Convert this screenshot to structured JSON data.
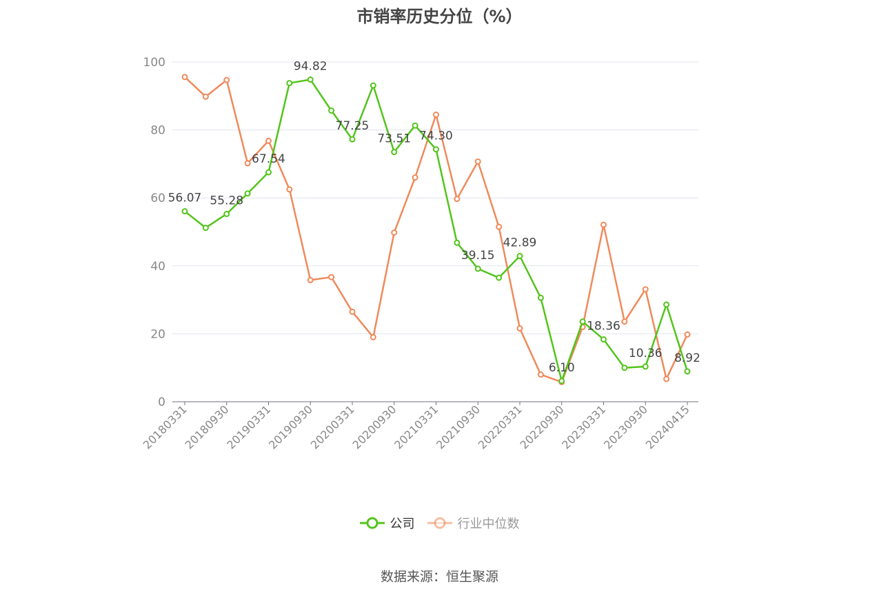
{
  "chart_data": {
    "type": "line",
    "title": "市销率历史分位（%）",
    "source": "数据来源：恒生聚源",
    "ylim": [
      0,
      100
    ],
    "yticks": [
      0,
      20,
      40,
      60,
      80,
      100
    ],
    "x_tick_labels": [
      "20180331",
      "20180930",
      "20190331",
      "20190930",
      "20200331",
      "20200930",
      "20210331",
      "20210930",
      "20220331",
      "20220930",
      "20230331",
      "20230930",
      "20240415"
    ],
    "x": [
      "20180331",
      "20180630",
      "20180930",
      "20181231",
      "20190331",
      "20190630",
      "20190930",
      "20191231",
      "20200331",
      "20200630",
      "20200930",
      "20201231",
      "20210331",
      "20210630",
      "20210930",
      "20211231",
      "20220331",
      "20220630",
      "20220930",
      "20221231",
      "20230331",
      "20230630",
      "20230930",
      "20231231",
      "20240415"
    ],
    "grid": true,
    "legend_position": "bottom-center",
    "series": [
      {
        "name": "公司",
        "color": "#52c41a",
        "values": [
          56.07,
          51.2,
          55.28,
          61.3,
          67.54,
          93.8,
          94.82,
          85.7,
          77.25,
          93.1,
          73.51,
          81.3,
          74.3,
          46.8,
          39.15,
          36.5,
          42.89,
          30.6,
          6.1,
          23.6,
          18.36,
          10.0,
          10.36,
          28.6,
          8.92
        ],
        "labels": [
          "56.07",
          "",
          "55.28",
          "",
          "67.54",
          "",
          "94.82",
          "",
          "77.25",
          "",
          "73.51",
          "",
          "74.30",
          "",
          "39.15",
          "",
          "42.89",
          "",
          "6.10",
          "",
          "18.36",
          "",
          "10.36",
          "",
          "8.92"
        ]
      },
      {
        "name": "行业中位数",
        "color": "#f0895a",
        "values": [
          95.6,
          89.8,
          94.7,
          70.2,
          76.8,
          62.5,
          35.8,
          36.7,
          26.5,
          19.0,
          49.8,
          66.0,
          84.5,
          59.7,
          70.7,
          51.5,
          21.6,
          8.0,
          5.8,
          22.0,
          52.1,
          23.6,
          33.1,
          6.7,
          19.8
        ]
      }
    ]
  }
}
